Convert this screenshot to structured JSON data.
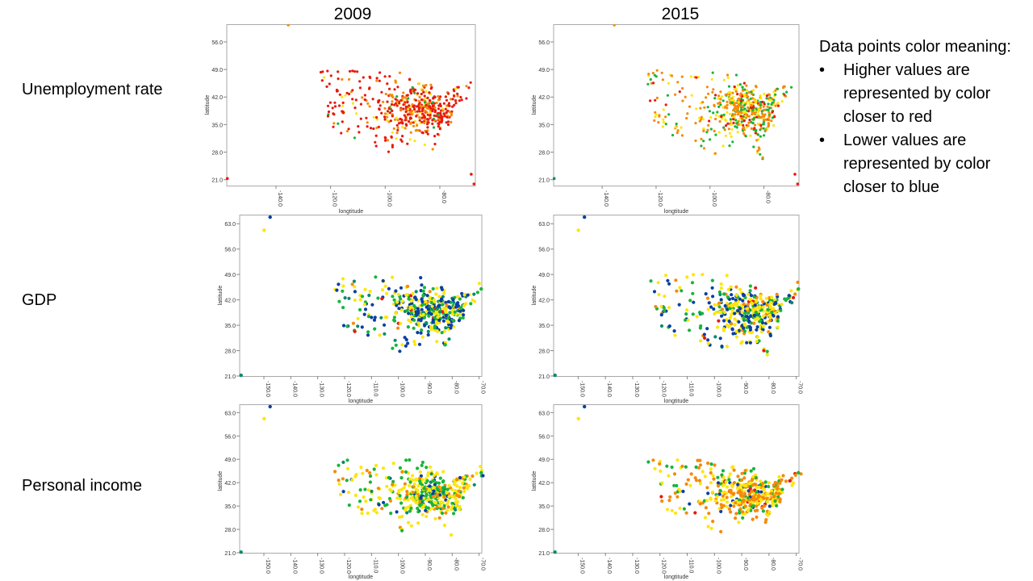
{
  "columns": [
    "2009",
    "2015"
  ],
  "rows": [
    "Unemployment rate",
    "GDP",
    "Personal income"
  ],
  "legend": {
    "title": "Data points color meaning:",
    "items": [
      "Higher values are represented by color closer to red",
      "Lower values are represented by color closer to blue"
    ]
  },
  "colors": {
    "red": "#e8190f",
    "orange": "#f58a0a",
    "yellow": "#fde60d",
    "green": "#18b53a",
    "teal": "#0c8a6e",
    "blue": "#0a3fa3",
    "axis": "#888888",
    "frame": "#aaaaaa"
  },
  "chart_data": [
    {
      "id": "unemp-2009",
      "type": "scatter",
      "row": "Unemployment rate",
      "year": "2009",
      "xlabel": "longtitude",
      "ylabel": "lattitude",
      "xlim": [
        -158,
        -67
      ],
      "ylim": [
        19.5,
        60.5
      ],
      "xticks": [
        "-140.0",
        "-120.0",
        "-100.0",
        "-80.0"
      ],
      "yticks": [
        "21.0",
        "28.0",
        "35.0",
        "42.0",
        "49.0",
        "56.0"
      ],
      "color_weights": {
        "red": 0.62,
        "orange": 0.25,
        "yellow": 0.09,
        "green": 0.04
      }
    },
    {
      "id": "unemp-2015",
      "type": "scatter",
      "row": "Unemployment rate",
      "year": "2015",
      "xlabel": "longtitude",
      "ylabel": "lattitude",
      "xlim": [
        -158,
        -67
      ],
      "ylim": [
        19.5,
        60.5
      ],
      "xticks": [
        "-140.0",
        "-120.0",
        "-100.0",
        "-80.0"
      ],
      "yticks": [
        "21.0",
        "28.0",
        "35.0",
        "42.0",
        "49.0",
        "56.0"
      ],
      "color_weights": {
        "orange": 0.45,
        "yellow": 0.2,
        "green": 0.25,
        "red": 0.1
      }
    },
    {
      "id": "gdp-2009",
      "type": "scatter",
      "row": "GDP",
      "year": "2009",
      "xlabel": "longtitude",
      "ylabel": "lattitude",
      "xlim": [
        -159,
        -69
      ],
      "ylim": [
        21,
        65.5
      ],
      "xticks": [
        "-150.0",
        "-140.0",
        "-130.0",
        "-120.0",
        "-110.0",
        "-100.0",
        "-90.0",
        "-80.0",
        "-70.0"
      ],
      "yticks": [
        "21.0",
        "28.0",
        "35.0",
        "42.0",
        "49.0",
        "56.0",
        "63.0"
      ],
      "color_weights": {
        "yellow": 0.35,
        "blue": 0.3,
        "green": 0.22,
        "teal": 0.08,
        "orange": 0.03,
        "red": 0.02
      }
    },
    {
      "id": "gdp-2015",
      "type": "scatter",
      "row": "GDP",
      "year": "2015",
      "xlabel": "longtitude",
      "ylabel": "lattitude",
      "xlim": [
        -159,
        -69
      ],
      "ylim": [
        21,
        65.5
      ],
      "xticks": [
        "-150.0",
        "-140.0",
        "-130.0",
        "-120.0",
        "-110.0",
        "-100.0",
        "-90.0",
        "-80.0",
        "-70.0"
      ],
      "yticks": [
        "21.0",
        "28.0",
        "35.0",
        "42.0",
        "49.0",
        "56.0",
        "63.0"
      ],
      "color_weights": {
        "yellow": 0.4,
        "blue": 0.3,
        "green": 0.17,
        "orange": 0.08,
        "red": 0.03,
        "teal": 0.02
      }
    },
    {
      "id": "income-2009",
      "type": "scatter",
      "row": "Personal income",
      "year": "2009",
      "xlabel": "longtitude",
      "ylabel": "lattitude",
      "xlim": [
        -159,
        -69
      ],
      "ylim": [
        21,
        65.5
      ],
      "xticks": [
        "-150.0",
        "-140.0",
        "-130.0",
        "-120.0",
        "-110.0",
        "-100.0",
        "-90.0",
        "-80.0",
        "-70.0"
      ],
      "yticks": [
        "21.0",
        "28.0",
        "35.0",
        "42.0",
        "49.0",
        "56.0",
        "63.0"
      ],
      "color_weights": {
        "yellow": 0.45,
        "green": 0.3,
        "orange": 0.12,
        "blue": 0.08,
        "teal": 0.05
      }
    },
    {
      "id": "income-2015",
      "type": "scatter",
      "row": "Personal income",
      "year": "2015",
      "xlabel": "longtitude",
      "ylabel": "lattitude",
      "xlim": [
        -159,
        -69
      ],
      "ylim": [
        21,
        65.5
      ],
      "xticks": [
        "-150.0",
        "-140.0",
        "-130.0",
        "-120.0",
        "-110.0",
        "-100.0",
        "-90.0",
        "-80.0",
        "-70.0"
      ],
      "yticks": [
        "21.0",
        "28.0",
        "35.0",
        "42.0",
        "49.0",
        "56.0",
        "63.0"
      ],
      "color_weights": {
        "orange": 0.42,
        "yellow": 0.35,
        "green": 0.15,
        "blue": 0.05,
        "red": 0.03
      }
    }
  ]
}
